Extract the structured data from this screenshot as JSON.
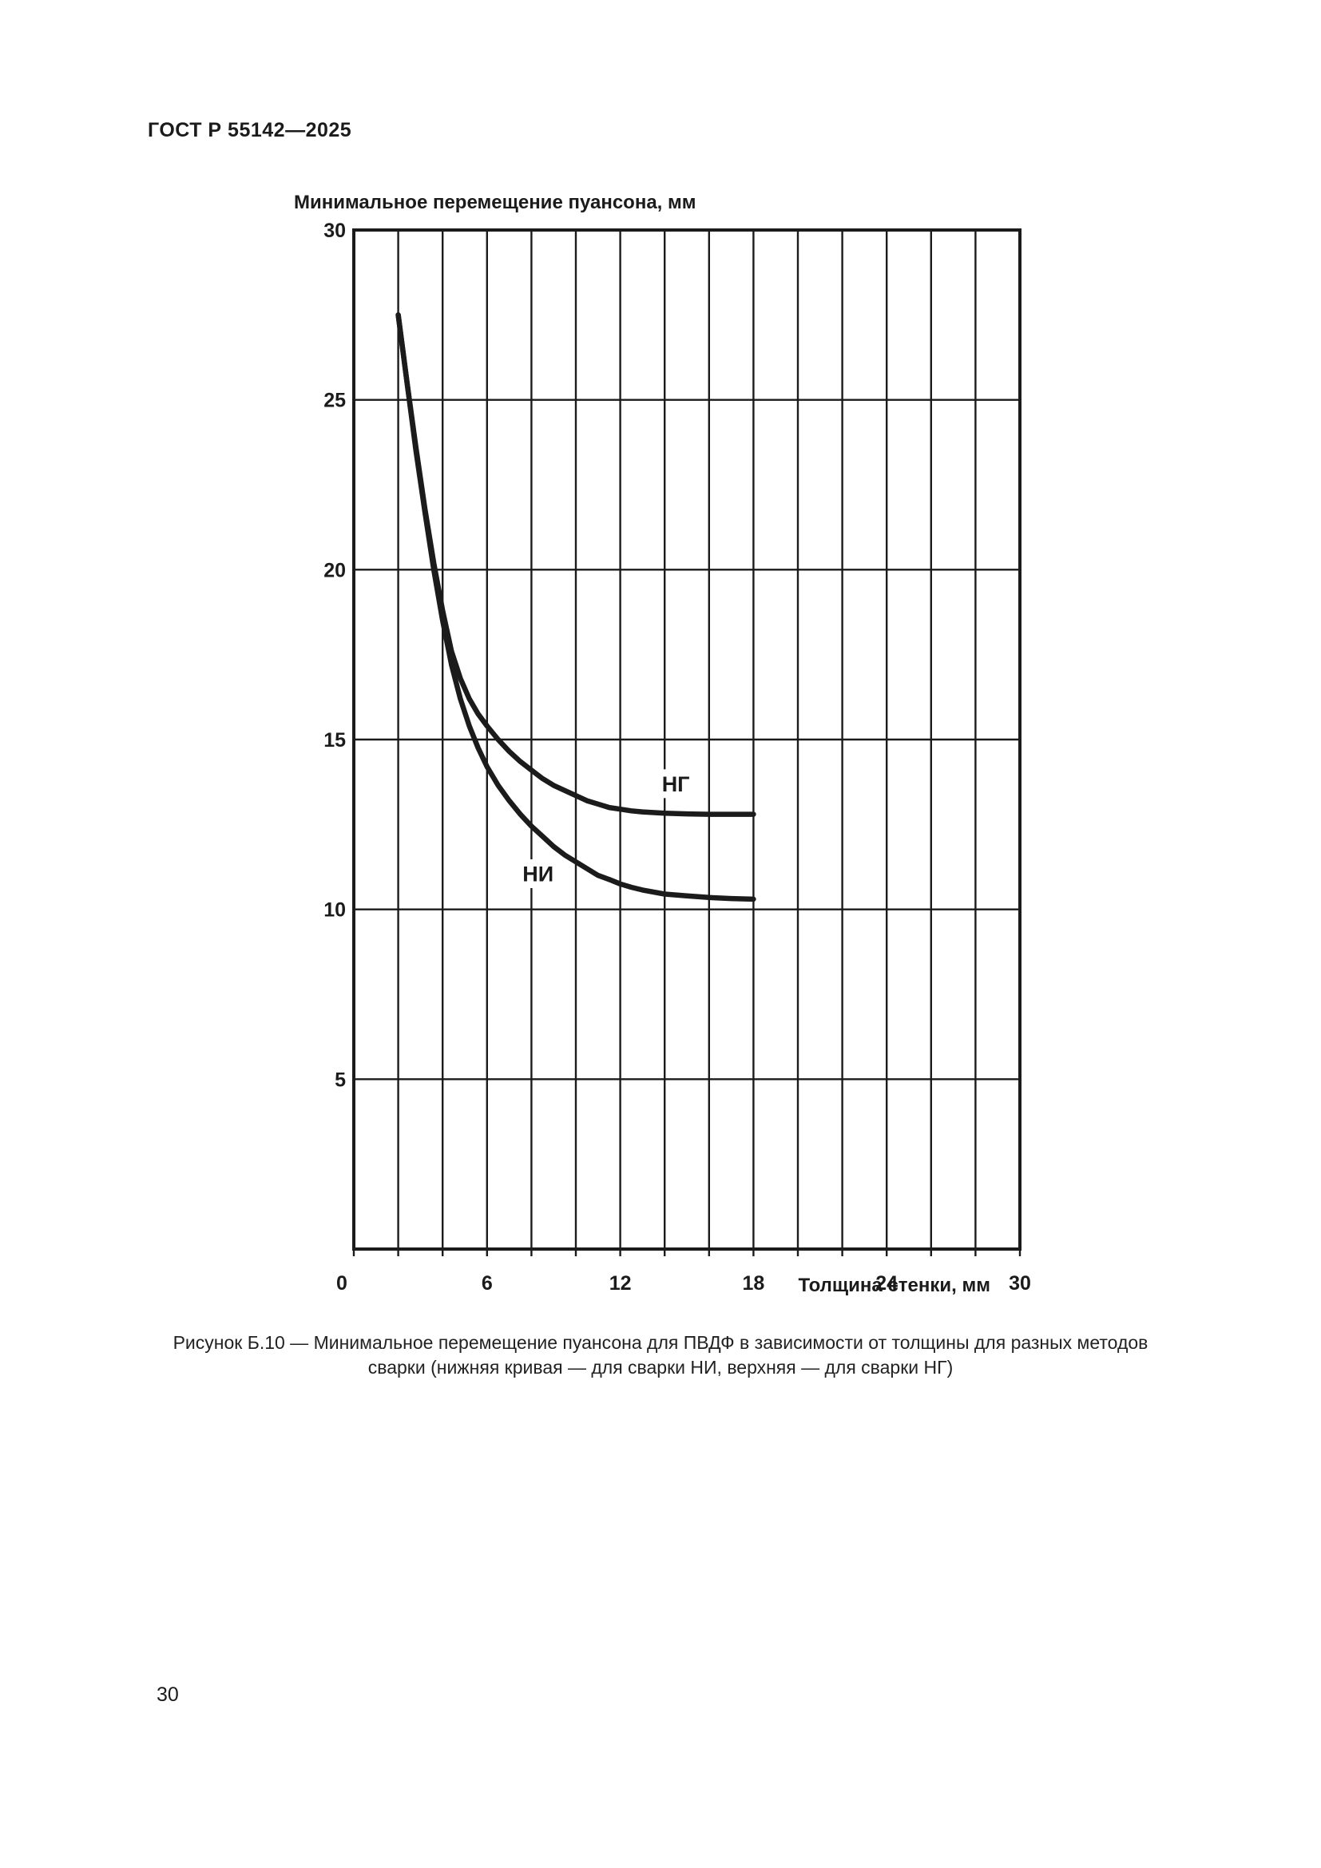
{
  "page": {
    "header": "ГОСТ Р 55142—2025",
    "page_number": "30",
    "caption_line1": "Рисунок Б.10 — Минимальное перемещение пуансона для ПВДФ в зависимости от толщины для разных методов",
    "caption_line2": "сварки (нижняя кривая — для сварки НИ, верхняя — для сварки НГ)"
  },
  "chart_data": {
    "type": "line",
    "title": "Минимальное перемещение пуансона, мм",
    "xlabel": "Толщина стенки, мм",
    "ylabel": "Минимальное перемещение пуансона, мм",
    "xlim": [
      0,
      30
    ],
    "ylim": [
      0,
      30
    ],
    "x_major_ticks": [
      0,
      6,
      12,
      18,
      24,
      30
    ],
    "x_grid_step": 2,
    "y_ticks": [
      5,
      10,
      15,
      20,
      25,
      30
    ],
    "y_grid_step": 5,
    "grid": true,
    "legend_position": "inline-labels",
    "line_color": "#1b1b1b",
    "series": [
      {
        "id": "ng",
        "name": "НГ",
        "description": "верхняя кривая — для сварки НГ",
        "label_pos": {
          "x": 14.5,
          "y": 13.7
        },
        "points": [
          [
            2,
            27.5
          ],
          [
            2.4,
            25.5
          ],
          [
            2.8,
            23.6
          ],
          [
            3.2,
            21.8
          ],
          [
            3.6,
            20.2
          ],
          [
            4,
            18.8
          ],
          [
            4.4,
            17.6
          ],
          [
            4.8,
            16.8
          ],
          [
            5.2,
            16.2
          ],
          [
            5.6,
            15.75
          ],
          [
            6,
            15.4
          ],
          [
            6.5,
            15.0
          ],
          [
            7,
            14.65
          ],
          [
            7.5,
            14.35
          ],
          [
            8,
            14.1
          ],
          [
            8.5,
            13.85
          ],
          [
            9,
            13.65
          ],
          [
            9.5,
            13.5
          ],
          [
            10,
            13.35
          ],
          [
            10.5,
            13.2
          ],
          [
            11,
            13.1
          ],
          [
            11.5,
            13.0
          ],
          [
            12,
            12.95
          ],
          [
            12.5,
            12.9
          ],
          [
            13,
            12.87
          ],
          [
            14,
            12.83
          ],
          [
            15,
            12.81
          ],
          [
            16,
            12.8
          ],
          [
            17,
            12.8
          ],
          [
            18,
            12.8
          ]
        ]
      },
      {
        "id": "ni",
        "name": "НИ",
        "description": "нижняя кривая — для сварки НИ",
        "label_pos": {
          "x": 8.3,
          "y": 11.05
        },
        "points": [
          [
            2,
            27.5
          ],
          [
            2.4,
            25.5
          ],
          [
            2.8,
            23.5
          ],
          [
            3.2,
            21.7
          ],
          [
            3.6,
            20.0
          ],
          [
            4,
            18.5
          ],
          [
            4.4,
            17.2
          ],
          [
            4.8,
            16.2
          ],
          [
            5.2,
            15.4
          ],
          [
            5.6,
            14.75
          ],
          [
            6,
            14.2
          ],
          [
            6.5,
            13.65
          ],
          [
            7,
            13.2
          ],
          [
            7.5,
            12.8
          ],
          [
            8,
            12.45
          ],
          [
            8.5,
            12.15
          ],
          [
            9,
            11.85
          ],
          [
            9.5,
            11.6
          ],
          [
            10,
            11.4
          ],
          [
            10.5,
            11.2
          ],
          [
            11,
            11.0
          ],
          [
            11.5,
            10.88
          ],
          [
            12,
            10.75
          ],
          [
            12.5,
            10.65
          ],
          [
            13,
            10.57
          ],
          [
            14,
            10.45
          ],
          [
            15,
            10.4
          ],
          [
            16,
            10.35
          ],
          [
            17,
            10.32
          ],
          [
            18,
            10.3
          ]
        ]
      }
    ]
  }
}
